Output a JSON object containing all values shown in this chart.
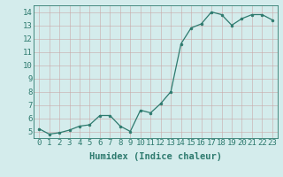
{
  "x": [
    0,
    1,
    2,
    3,
    4,
    5,
    6,
    7,
    8,
    9,
    10,
    11,
    12,
    13,
    14,
    15,
    16,
    17,
    18,
    19,
    20,
    21,
    22,
    23
  ],
  "y": [
    5.2,
    4.8,
    4.9,
    5.1,
    5.4,
    5.5,
    6.2,
    6.2,
    5.4,
    5.0,
    6.6,
    6.4,
    7.1,
    8.0,
    11.6,
    12.8,
    13.1,
    14.0,
    13.8,
    13.0,
    13.5,
    13.8,
    13.8,
    13.4
  ],
  "xlabel": "Humidex (Indice chaleur)",
  "xlim": [
    -0.5,
    23.5
  ],
  "ylim": [
    4.5,
    14.5
  ],
  "yticks": [
    5,
    6,
    7,
    8,
    9,
    10,
    11,
    12,
    13,
    14
  ],
  "xticks": [
    0,
    1,
    2,
    3,
    4,
    5,
    6,
    7,
    8,
    9,
    10,
    11,
    12,
    13,
    14,
    15,
    16,
    17,
    18,
    19,
    20,
    21,
    22,
    23
  ],
  "line_color": "#2d7a6e",
  "marker_color": "#2d7a6e",
  "bg_color": "#d4ecec",
  "grid_color": "#c8a8a8",
  "xlabel_fontsize": 7.5,
  "tick_fontsize": 6.5
}
